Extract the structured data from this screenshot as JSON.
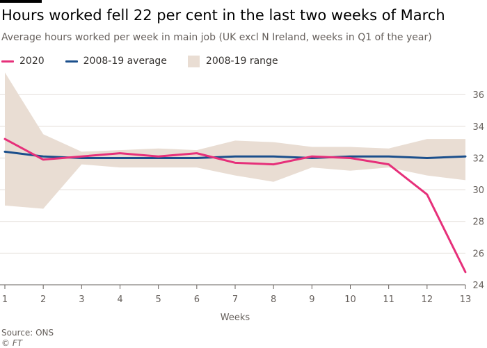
{
  "title": "Hours worked fell 22 per cent in the last two weeks of March",
  "subtitle": "Average hours worked per week in main job (UK excl N Ireland, weeks in Q1 of the year)",
  "source": "Source: ONS",
  "credit": "© FT",
  "legend": [
    {
      "label": "2020",
      "color": "#e6307a",
      "kind": "line"
    },
    {
      "label": "2008-19 average",
      "color": "#1b4f8c",
      "kind": "line"
    },
    {
      "label": "2008-19 range",
      "color": "#e9ddd3",
      "kind": "box"
    }
  ],
  "chart_data": {
    "type": "line",
    "x": [
      1,
      2,
      3,
      4,
      5,
      6,
      7,
      8,
      9,
      10,
      11,
      12,
      13
    ],
    "xlabel": "Weeks",
    "ylabel": "",
    "xlim": [
      1,
      13
    ],
    "ylim": [
      24,
      36
    ],
    "yticks": [
      24,
      26,
      28,
      30,
      32,
      34,
      36
    ],
    "y_axis_side": "right",
    "grid": true,
    "series": [
      {
        "name": "2020",
        "kind": "line",
        "color": "#e6307a",
        "values": [
          33.2,
          31.9,
          32.1,
          32.3,
          32.1,
          32.3,
          31.7,
          31.6,
          32.1,
          32.0,
          31.6,
          29.7,
          24.8
        ]
      },
      {
        "name": "2008-19 average",
        "kind": "line",
        "color": "#1b4f8c",
        "values": [
          32.4,
          32.1,
          32.0,
          32.0,
          32.0,
          32.0,
          32.1,
          32.1,
          32.0,
          32.1,
          32.1,
          32.0,
          32.1
        ]
      },
      {
        "name": "2008-19 range",
        "kind": "band",
        "color": "#e9ddd3",
        "upper": [
          37.4,
          33.5,
          32.4,
          32.5,
          32.6,
          32.5,
          33.1,
          33.0,
          32.7,
          32.7,
          32.6,
          33.2,
          33.2
        ],
        "lower": [
          29.0,
          28.8,
          31.6,
          31.4,
          31.4,
          31.4,
          30.9,
          30.5,
          31.4,
          31.2,
          31.4,
          30.9,
          30.6
        ]
      }
    ]
  }
}
